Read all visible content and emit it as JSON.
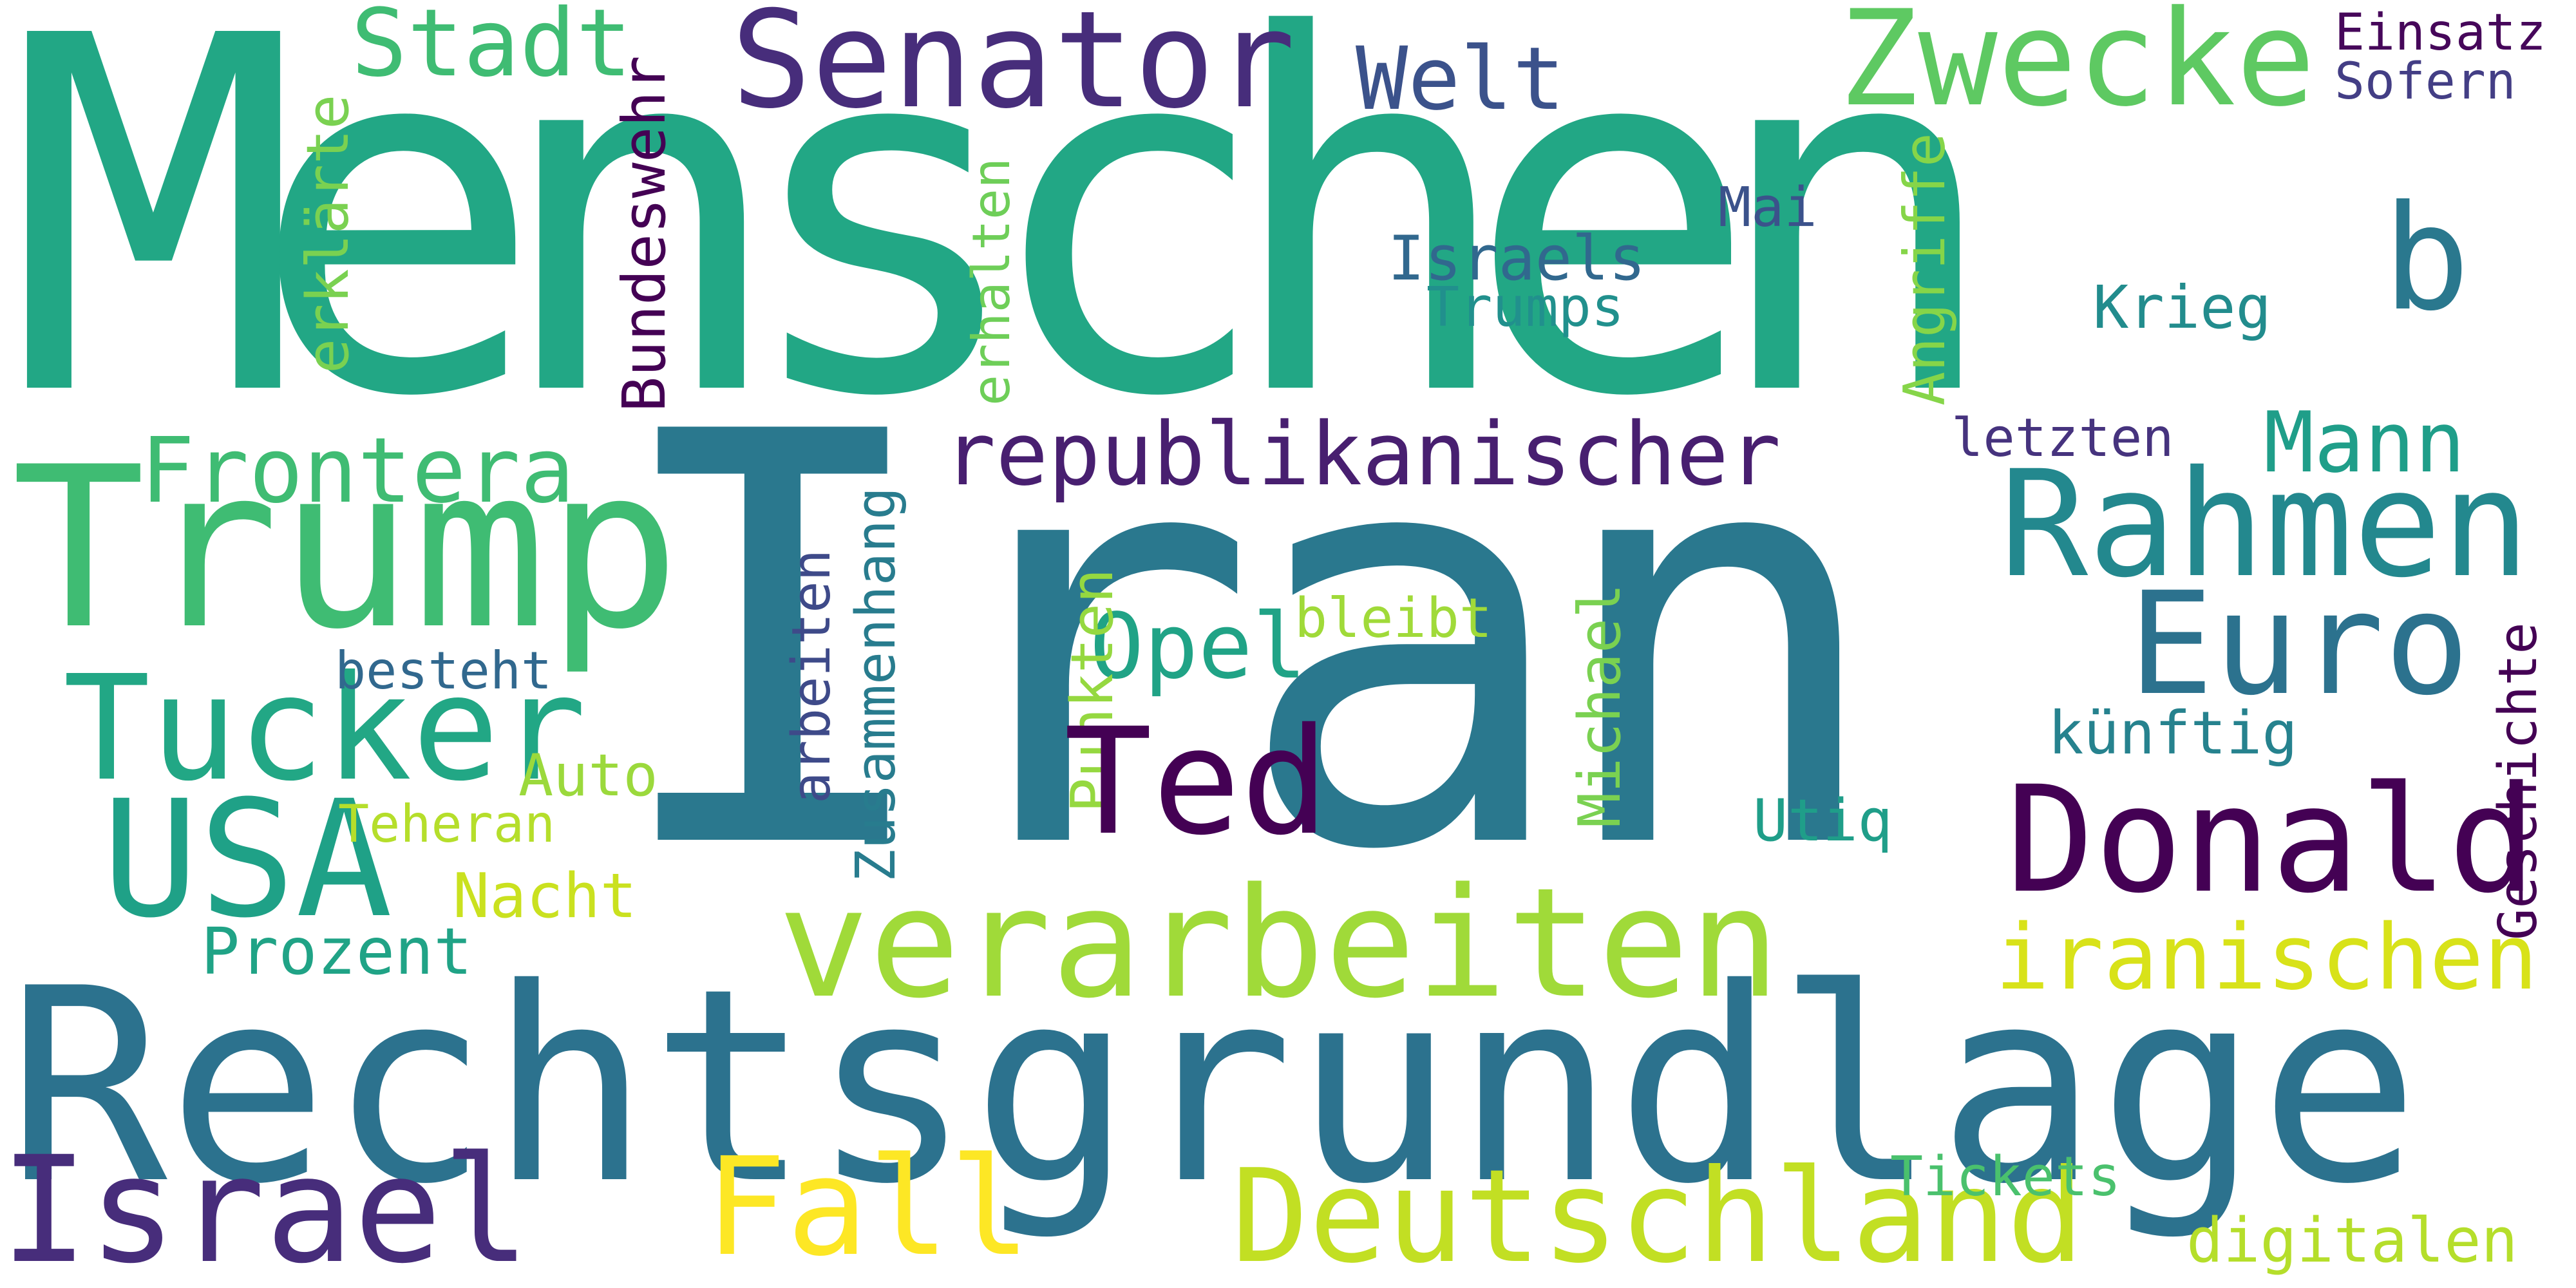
{
  "cloud": {
    "background": "#ffffff",
    "words": [
      {
        "text": "Menschen",
        "color": "#22a785"
      },
      {
        "text": "Iran",
        "color": "#2a788e"
      },
      {
        "text": "Rechtsgrundlage",
        "color": "#2c728e"
      },
      {
        "text": "Trump",
        "color": "#3fbc73"
      },
      {
        "text": "Senator",
        "color": "#472d7b"
      },
      {
        "text": "Zwecke",
        "color": "#5ec962"
      },
      {
        "text": "Stadt",
        "color": "#3fbc73"
      },
      {
        "text": "Welt",
        "color": "#3b528b"
      },
      {
        "text": "Einsatz",
        "color": "#46075a"
      },
      {
        "text": "Sofern",
        "color": "#433e85"
      },
      {
        "text": "b",
        "color": "#2a788e"
      },
      {
        "text": "erklärte",
        "color": "#7ad151"
      },
      {
        "text": "Bundeswehr",
        "color": "#440154"
      },
      {
        "text": "erhalten",
        "color": "#6ece58"
      },
      {
        "text": "Angriffe",
        "color": "#86d549"
      },
      {
        "text": "Mai",
        "color": "#3b528b"
      },
      {
        "text": "Israels",
        "color": "#31688e"
      },
      {
        "text": "Trumps",
        "color": "#21908d"
      },
      {
        "text": "Krieg",
        "color": "#228c8d"
      },
      {
        "text": "Frontera",
        "color": "#3fbc73"
      },
      {
        "text": "republikanischer",
        "color": "#481f70"
      },
      {
        "text": "letzten",
        "color": "#46337e"
      },
      {
        "text": "Mann",
        "color": "#1f9e89"
      },
      {
        "text": "Rahmen",
        "color": "#23888e"
      },
      {
        "text": "Euro",
        "color": "#2c728e"
      },
      {
        "text": "Opel",
        "color": "#20a386"
      },
      {
        "text": "bleibt",
        "color": "#a0da39"
      },
      {
        "text": "Zusammenhang",
        "color": "#287c8e"
      },
      {
        "text": "arbeiten",
        "color": "#3e4a89"
      },
      {
        "text": "Punkten",
        "color": "#95d840"
      },
      {
        "text": "Michael",
        "color": "#7ad151"
      },
      {
        "text": "Tucker",
        "color": "#22a785"
      },
      {
        "text": "besteht",
        "color": "#31688e"
      },
      {
        "text": "Ted",
        "color": "#440154"
      },
      {
        "text": "künftig",
        "color": "#26828e"
      },
      {
        "text": "Geschichte",
        "color": "#440154"
      },
      {
        "text": "USA",
        "color": "#1fa187"
      },
      {
        "text": "Auto",
        "color": "#9bd93c"
      },
      {
        "text": "Teheran",
        "color": "#b5de2b"
      },
      {
        "text": "Donald",
        "color": "#440154"
      },
      {
        "text": "Utiq",
        "color": "#1f9e89"
      },
      {
        "text": "Nacht",
        "color": "#cae11f"
      },
      {
        "text": "verarbeiten",
        "color": "#a0da39"
      },
      {
        "text": "iranischen",
        "color": "#d8e219"
      },
      {
        "text": "Prozent",
        "color": "#20a386"
      },
      {
        "text": "Israel",
        "color": "#472d7b"
      },
      {
        "text": "Fall",
        "color": "#fde725"
      },
      {
        "text": "Deutschland",
        "color": "#c2df23"
      },
      {
        "text": "Tickets",
        "color": "#4ac16d"
      },
      {
        "text": "digitalen",
        "color": "#b5de2b"
      }
    ]
  }
}
